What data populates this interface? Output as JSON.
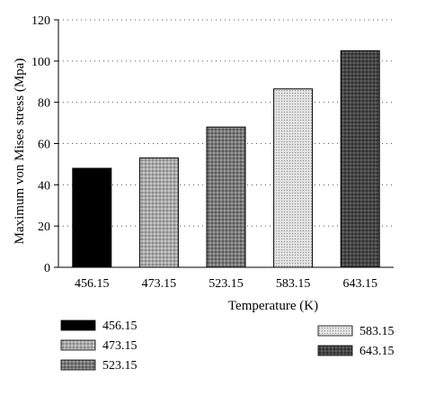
{
  "chart_data": {
    "type": "bar",
    "categories": [
      "456.15",
      "473.15",
      "523.15",
      "583.15",
      "643.15"
    ],
    "values": [
      48,
      53,
      68,
      86.5,
      105
    ],
    "xlabel": "Temperature (K)",
    "ylabel": "Maximum von Mises stress (Mpa)",
    "ylim": [
      0,
      120
    ],
    "yticks": [
      0,
      20,
      40,
      60,
      80,
      100,
      120
    ],
    "grid": {
      "horizontal": true,
      "style": "dotted"
    },
    "legend": {
      "placement": "bottom",
      "entries": [
        "456.15",
        "473.15",
        "523.15",
        "583.15",
        "643.15"
      ]
    },
    "series_colors": [
      "#000000",
      "#bdbdbd",
      "#6e6e6e",
      "#d6d6d6",
      "#3f3f3f"
    ]
  }
}
